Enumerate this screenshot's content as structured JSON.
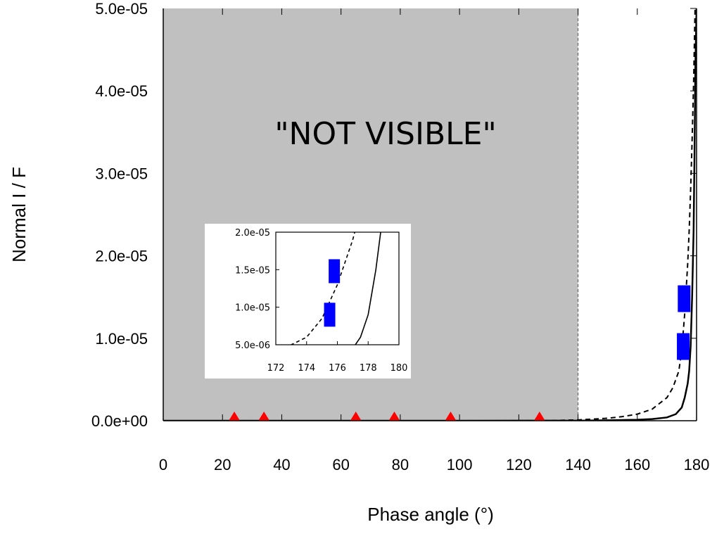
{
  "chart_data": {
    "type": "line",
    "xlabel": "Phase angle (°)",
    "ylabel": "Normal  I / F",
    "xlim": [
      0,
      180
    ],
    "ylim": [
      0,
      5e-05
    ],
    "xticks": [
      "0",
      "20",
      "40",
      "60",
      "80",
      "100",
      "120",
      "140",
      "160",
      "180"
    ],
    "yticks": [
      "0.0e+00",
      "1.0e-05",
      "2.0e-05",
      "3.0e-05",
      "4.0e-05",
      "5.0e-05"
    ],
    "grid": false,
    "shaded_region": {
      "x_range": [
        0,
        140
      ],
      "label": "\"NOT VISIBLE\"",
      "color": "#c0c0c0"
    },
    "series": [
      {
        "style": "solid",
        "color": "#000000",
        "x": [
          0,
          100,
          140,
          150,
          160,
          165,
          170,
          173,
          175,
          176,
          177,
          177.5,
          178,
          178.5,
          179,
          179.3,
          179.6,
          180
        ],
        "y": [
          0,
          0,
          1e-08,
          5e-08,
          1.2e-07,
          2e-07,
          4e-07,
          8e-07,
          1.6e-06,
          2.8e-06,
          4.5e-06,
          6e-06,
          9e-06,
          1.5e-05,
          2.3e-05,
          3.2e-05,
          4.3e-05,
          5e-05
        ]
      },
      {
        "style": "dashed",
        "color": "#000000",
        "x": [
          0,
          100,
          130,
          140,
          150,
          155,
          160,
          165,
          170,
          172,
          174,
          175,
          176,
          177,
          177.5,
          178,
          178.5,
          179,
          179.5
        ],
        "y": [
          0,
          0,
          1e-08,
          1e-07,
          3e-07,
          5e-07,
          8e-07,
          1.4e-06,
          2.8e-06,
          4e-06,
          6e-06,
          8.5e-06,
          1.3e-05,
          1.9e-05,
          2.3e-05,
          2.8e-05,
          3.4e-05,
          4.1e-05,
          5e-05
        ]
      },
      {
        "type": "scatter",
        "marker": "triangle",
        "color": "#ff0000",
        "x": [
          24,
          34,
          65,
          78,
          97,
          127
        ],
        "y": [
          0,
          0,
          0,
          0,
          0,
          0
        ]
      },
      {
        "type": "scatter",
        "marker": "rect",
        "color": "#0000ff",
        "x": [
          175.5,
          175.8
        ],
        "y": [
          9e-06,
          1.48e-05
        ]
      }
    ],
    "inset": {
      "xlim": [
        172,
        180
      ],
      "ylim": [
        5e-06,
        2e-05
      ],
      "xticks": [
        "172",
        "174",
        "176",
        "178",
        "180"
      ],
      "yticks": [
        "5.0e-06",
        "1.0e-05",
        "1.5e-05",
        "2.0e-05"
      ]
    }
  }
}
